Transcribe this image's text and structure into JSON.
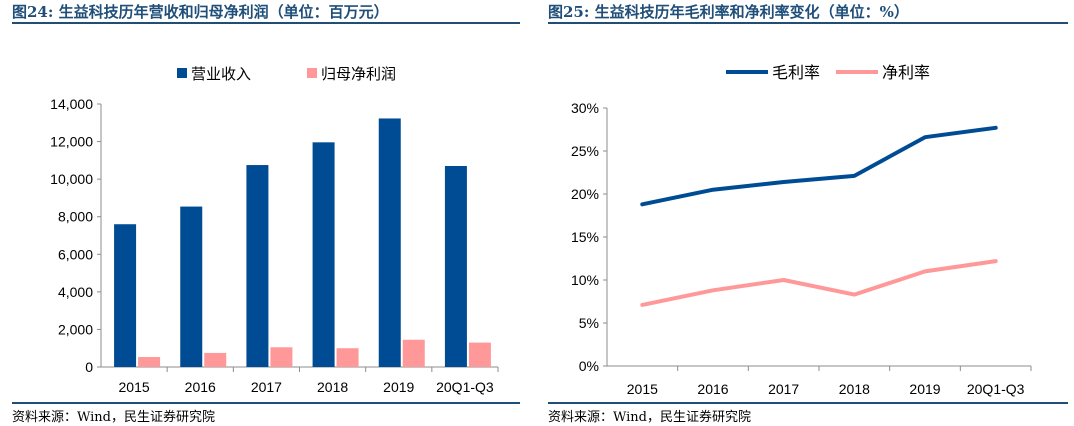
{
  "colors": {
    "title": "#1f4e79",
    "revenue": "#004c94",
    "profit": "#ff9999",
    "gross": "#004c94",
    "net": "#ff9999",
    "axis": "#8c8c8c",
    "text": "#000000"
  },
  "panels": [
    {
      "title": "图24: 生益科技历年营收和归母净利润（单位：百万元）",
      "source": "资料来源：Wind，民生证券研究院",
      "chart_data": {
        "type": "bar",
        "categories": [
          "2015",
          "2016",
          "2017",
          "2018",
          "2019",
          "20Q1-Q3"
        ],
        "series": [
          {
            "name": "营业收入",
            "values": [
              7600,
              8540,
              10750,
              11960,
              13230,
              10700
            ]
          },
          {
            "name": "归母净利润",
            "values": [
              530,
              750,
              1050,
              1000,
              1450,
              1300
            ]
          }
        ],
        "yticks": [
          "0",
          "2,000",
          "4,000",
          "6,000",
          "8,000",
          "10,000",
          "12,000",
          "14,000"
        ],
        "ylim": [
          0,
          14000
        ],
        "title": "",
        "xlabel": "",
        "ylabel": "",
        "legend": "top-center"
      }
    },
    {
      "title": "图25: 生益科技历年毛利率和净利率变化（单位：%）",
      "source": "资料来源：Wind，民生证券研究院",
      "chart_data": {
        "type": "line",
        "categories": [
          "2015",
          "2016",
          "2017",
          "2018",
          "2019",
          "20Q1-Q3"
        ],
        "series": [
          {
            "name": "毛利率",
            "values": [
              18.8,
              20.5,
              21.4,
              22.1,
              26.6,
              27.7
            ]
          },
          {
            "name": "净利率",
            "values": [
              7.1,
              8.8,
              10.0,
              8.3,
              11.0,
              12.2
            ]
          }
        ],
        "yticks": [
          "0%",
          "5%",
          "10%",
          "15%",
          "20%",
          "25%",
          "30%"
        ],
        "ylim": [
          0,
          30
        ],
        "title": "",
        "xlabel": "",
        "ylabel": "",
        "legend": "top-center"
      }
    }
  ]
}
